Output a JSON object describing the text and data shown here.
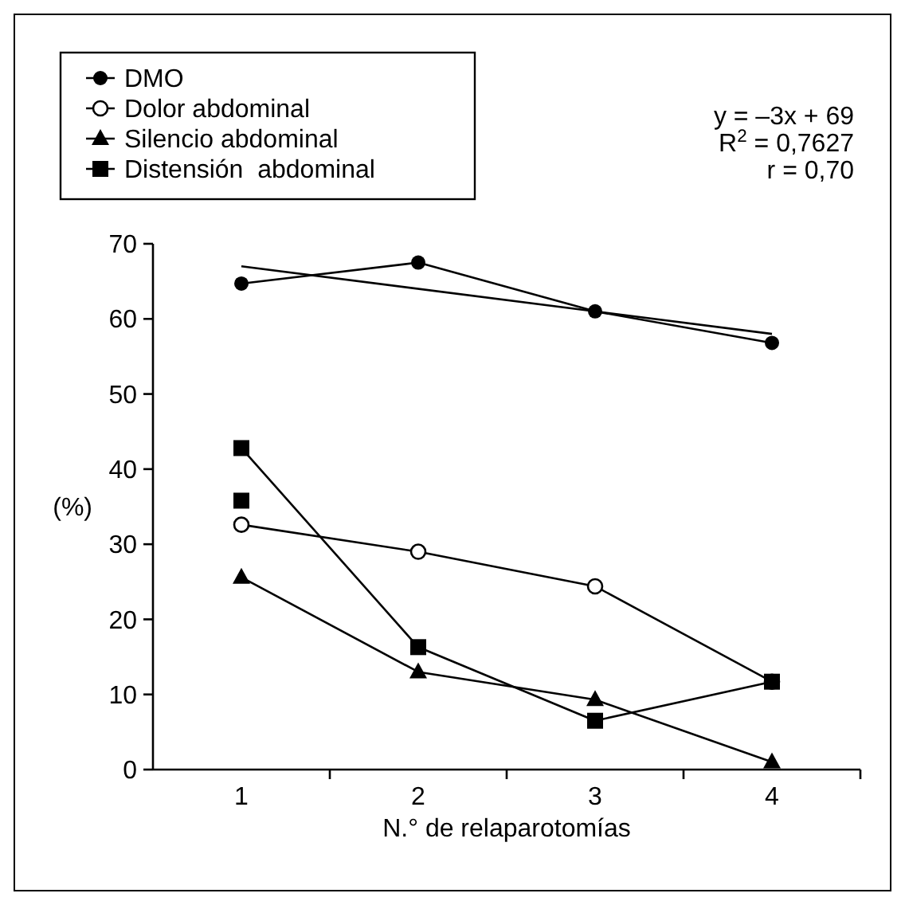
{
  "chart_data": {
    "type": "line",
    "xlabel": "N.° de relaparotomías",
    "ylabel": "(%)",
    "categories": [
      "1",
      "2",
      "3",
      "4"
    ],
    "ylim": [
      0,
      70
    ],
    "yticks": [
      0,
      10,
      20,
      30,
      40,
      50,
      60,
      70
    ],
    "grid": false,
    "legend": "top left",
    "line_style": "solid",
    "series": [
      {
        "name": "DMO",
        "color": "#000000",
        "marker": "circle",
        "values": [
          64.7,
          67.5,
          61,
          56.8
        ]
      },
      {
        "name": "Dolor abdominal",
        "color": "#000000",
        "marker": "circle-open",
        "values": [
          32.6,
          29,
          24.4,
          11.7
        ]
      },
      {
        "name": "Silencio abdominal",
        "color": "#000000",
        "marker": "triangle",
        "values": [
          25.6,
          13,
          9.3,
          1
        ]
      },
      {
        "name": "Distensión  abdominal",
        "color": "#000000",
        "marker": "square",
        "values": [
          42.8,
          16.3,
          6.5,
          11.7
        ]
      },
      {
        "type": "scatter",
        "color": "#000000",
        "marker": "square",
        "x": [
          "1"
        ],
        "values": [
          35.8
        ]
      },
      {
        "type": "line",
        "color": "#000000",
        "marker": "none",
        "x": [
          "1",
          "4"
        ],
        "values": [
          67,
          58
        ]
      }
    ],
    "annotations": [
      "y = –3x + 69",
      "R$^{2}$ = 0,7627",
      "r = 0,70"
    ]
  }
}
